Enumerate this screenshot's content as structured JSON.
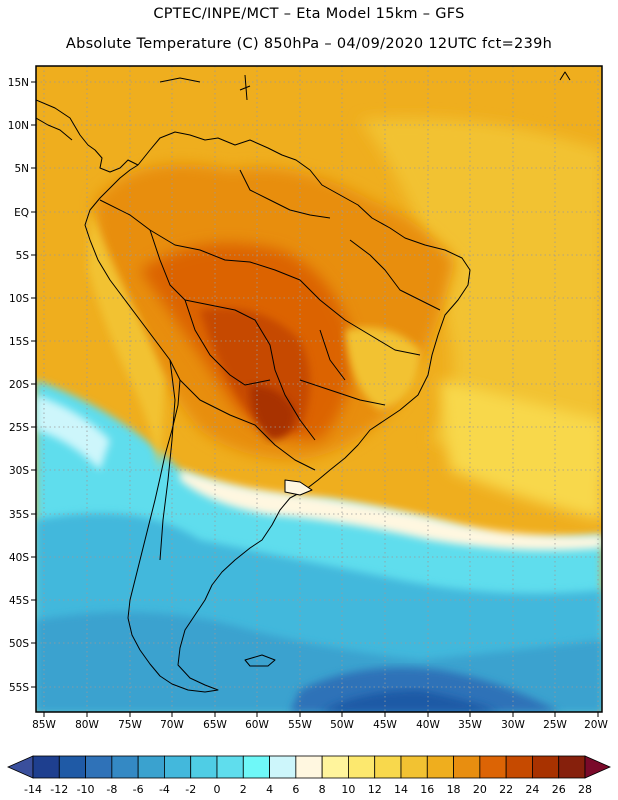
{
  "header": {
    "line1": "CPTEC/INPE/MCT –  Eta Model 15km – GFS",
    "line2": "Absolute Temperature (C) 850hPa – 04/09/2020 12UTC fct=239h"
  },
  "axes": {
    "lat_labels": [
      "15N",
      "10N",
      "5N",
      "EQ",
      "5S",
      "10S",
      "15S",
      "20S",
      "25S",
      "30S",
      "35S",
      "40S",
      "45S",
      "50S",
      "55S"
    ],
    "lon_labels": [
      "85W",
      "80W",
      "75W",
      "70W",
      "65W",
      "60W",
      "55W",
      "50W",
      "45W",
      "40W",
      "35W",
      "30W",
      "25W",
      "20W"
    ]
  },
  "colorbar": {
    "labels": [
      "-14",
      "-12",
      "-10",
      "-8",
      "-6",
      "-4",
      "-2",
      "0",
      "2",
      "4",
      "6",
      "8",
      "10",
      "12",
      "14",
      "16",
      "18",
      "20",
      "22",
      "24",
      "26",
      "28"
    ],
    "colors": [
      "#1e3f8f",
      "#1f5aa6",
      "#2f72b8",
      "#3489c4",
      "#3aa2cf",
      "#43b8dc",
      "#4fcde5",
      "#5fdded",
      "#6ff8f8",
      "#cdf6fb",
      "#fff7e0",
      "#fff49c",
      "#fce86e",
      "#f8d84c",
      "#f2c232",
      "#efae1e",
      "#e88e10",
      "#dc6405",
      "#c64a00",
      "#a83200",
      "#86200c"
    ],
    "under_color": "#3a4f9c",
    "over_color": "#7a0a2a"
  },
  "palette": {
    "sea_orange": "#efae1e",
    "land_orange": "#e88e10",
    "hot_core": "#c64a00",
    "cool_cyan": "#43b8dc",
    "deep_blue": "#1f5aa6"
  }
}
